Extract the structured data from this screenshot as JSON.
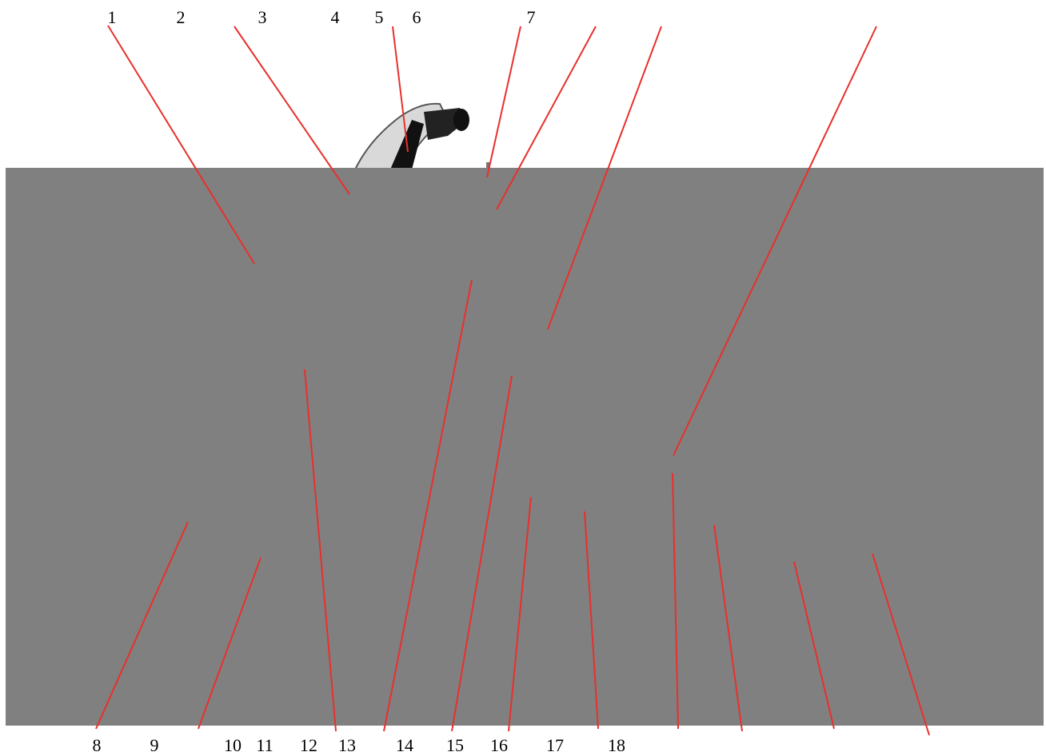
{
  "callouts": {
    "top": [
      "1",
      "2",
      "3",
      "4",
      "5",
      "6",
      "7"
    ],
    "bottom": [
      "8",
      "9",
      "10",
      "11",
      "12",
      "13",
      "14",
      "15",
      "16",
      "17",
      "18"
    ]
  }
}
